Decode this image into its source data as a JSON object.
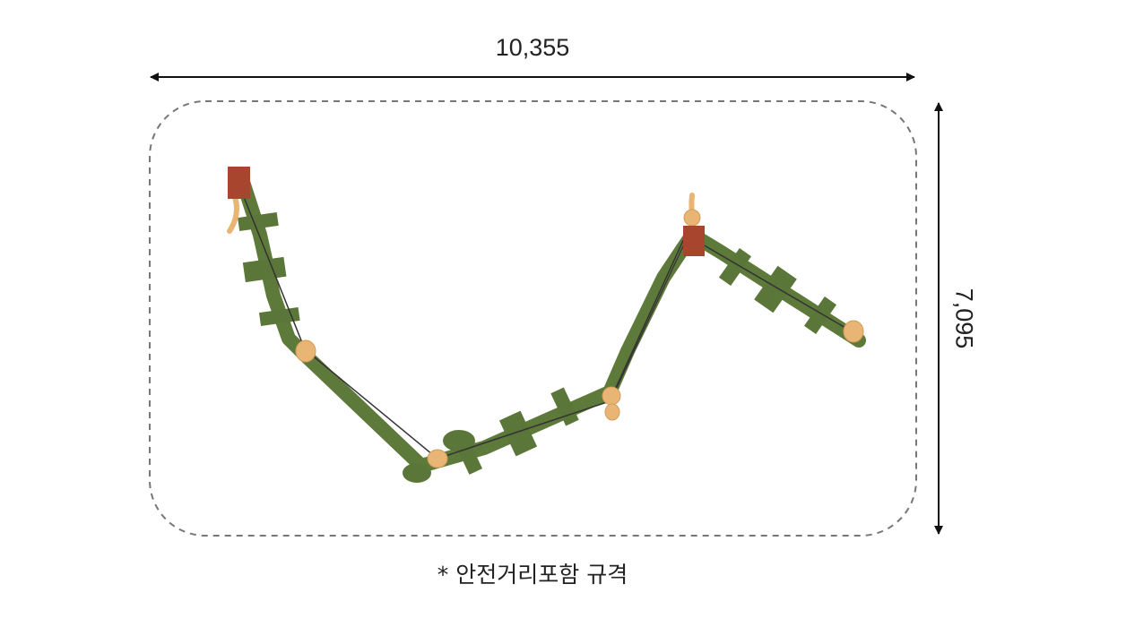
{
  "dimensions": {
    "width_label": "10,355",
    "height_label": "7,095"
  },
  "caption": "* 안전거리포함 규격",
  "colors": {
    "beam": "#5e7a3b",
    "post": "#a8452e",
    "wood": "#e9b575",
    "rope": "#333333",
    "dash": "#777777"
  }
}
